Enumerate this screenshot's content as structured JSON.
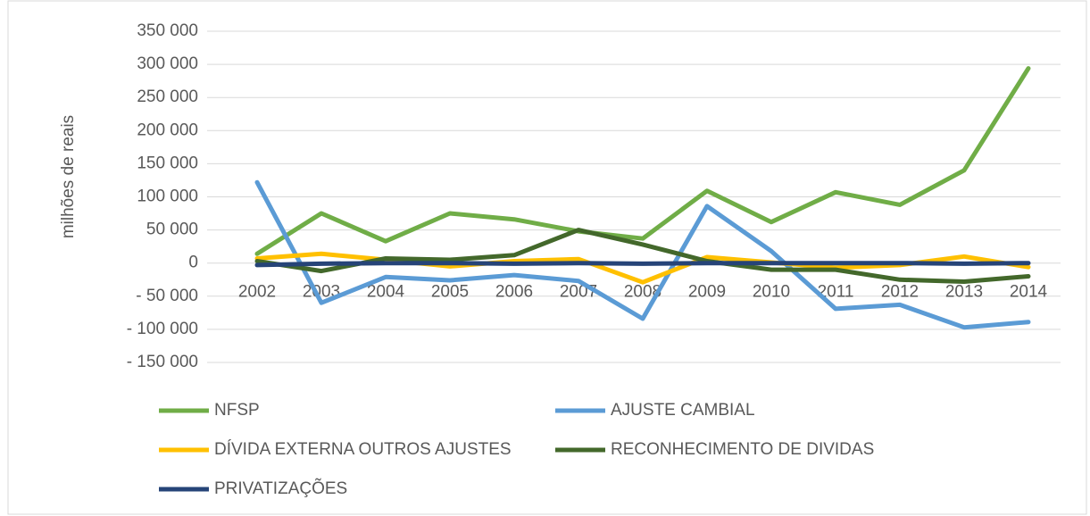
{
  "chart_data": {
    "type": "line",
    "y_label": "milhões de reais",
    "categories": [
      "2002",
      "2003",
      "2004",
      "2005",
      "2006",
      "2007",
      "2008",
      "2009",
      "2010",
      "2011",
      "2012",
      "2013",
      "2014"
    ],
    "series": [
      {
        "name": "NFSP",
        "color": "#70ad47",
        "values": [
          14000,
          75000,
          33000,
          75000,
          66000,
          48000,
          37000,
          109000,
          62000,
          107000,
          88000,
          140000,
          294000
        ]
      },
      {
        "name": "AJUSTE CAMBIAL",
        "color": "#5b9bd5",
        "values": [
          122000,
          -60000,
          -21000,
          -26000,
          -18000,
          -27000,
          -84000,
          86000,
          18000,
          -69000,
          -63000,
          -97000,
          -89000
        ]
      },
      {
        "name": "DÍVIDA EXTERNA OUTROS AJUSTES",
        "color": "#ffc000",
        "values": [
          7000,
          14000,
          5000,
          -5000,
          3000,
          6000,
          -29000,
          9000,
          1000,
          -7000,
          -3000,
          10000,
          -6000
        ]
      },
      {
        "name": "RECONHECIMENTO DE DIVIDAS",
        "color": "#43682b",
        "values": [
          3000,
          -12000,
          7000,
          5000,
          12000,
          50000,
          28000,
          3000,
          -10000,
          -10000,
          -25000,
          -28000,
          -20000
        ]
      },
      {
        "name": "PRIVATIZAÇÕES",
        "color": "#264478",
        "values": [
          -3000,
          -1000,
          0,
          0,
          -1000,
          0,
          -1000,
          0,
          0,
          0,
          0,
          -1000,
          0
        ]
      }
    ],
    "ylim": [
      -150000,
      350000
    ],
    "yticks": [
      {
        "value": -150000,
        "label": "- 150 000"
      },
      {
        "value": -100000,
        "label": "- 100 000"
      },
      {
        "value": -50000,
        "label": "- 50 000"
      },
      0,
      {
        "value": 50000,
        "label": "50 000"
      },
      {
        "value": 100000,
        "label": "100 000"
      },
      {
        "value": 150000,
        "label": "150 000"
      },
      {
        "value": 200000,
        "label": "200 000"
      },
      {
        "value": 250000,
        "label": "250 000"
      },
      {
        "value": 300000,
        "label": "300 000"
      },
      {
        "value": 350000,
        "label": "350 000"
      }
    ],
    "grid": true
  }
}
